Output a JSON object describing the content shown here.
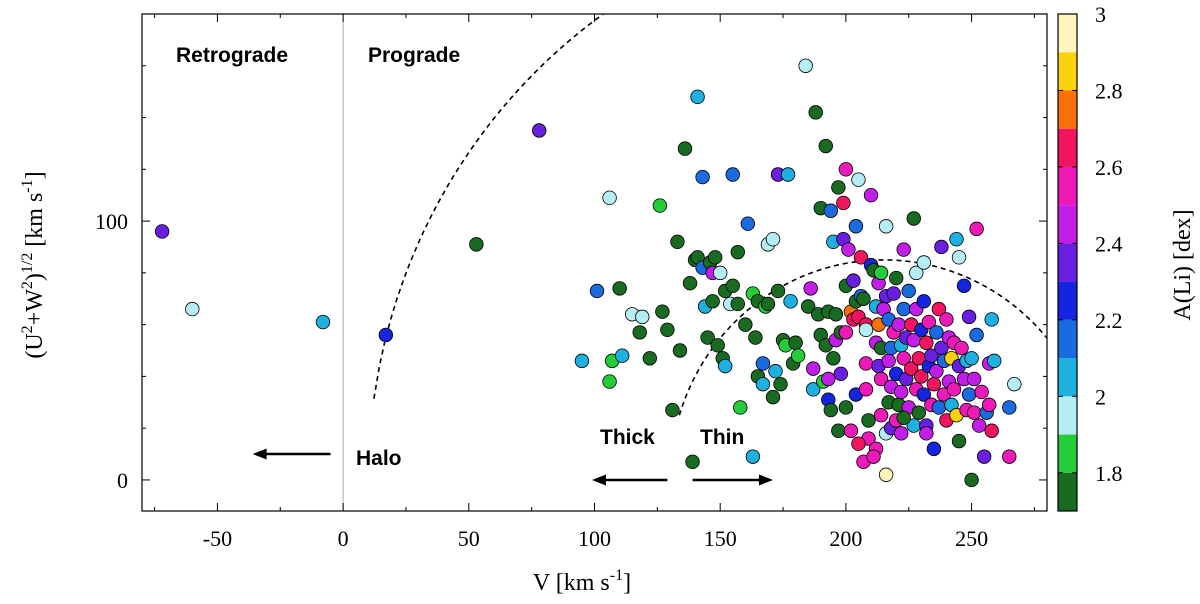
{
  "chart_data": {
    "type": "scatter",
    "xlabel": "V [km s⁻¹]",
    "ylabel": "(U²+W²)¹ᐟ² [km s⁻¹]",
    "ylabel_parts": {
      "prefix": "(U",
      "sq1": "2",
      "mid": "+W",
      "sq2": "2",
      "close": ")",
      "half": "1/2",
      "unit": " [km s",
      "neg1": "-1",
      "end": "]"
    },
    "xlabel_parts": {
      "main": "V [km s",
      "neg1": "-1",
      "end": "]"
    },
    "xlim": [
      -80,
      280
    ],
    "ylim": [
      -12,
      180
    ],
    "xticks": [
      -50,
      0,
      50,
      100,
      150,
      200,
      250
    ],
    "yticks": [
      0,
      100
    ],
    "xtick_labels": [
      "-50",
      "0",
      "50",
      "100",
      "150",
      "200",
      "250"
    ],
    "ytick_labels": [
      "0",
      "100"
    ],
    "colorbar": {
      "label": "A(Li) [dex]",
      "range": [
        1.7,
        3.0
      ],
      "ticks": [
        1.8,
        2.0,
        2.2,
        2.4,
        2.6,
        2.8,
        3.0
      ],
      "tick_labels": [
        "1.8",
        "2",
        "2.2",
        "2.4",
        "2.6",
        "2.8",
        "3"
      ],
      "bins": [
        {
          "from": 1.7,
          "to": 1.8,
          "color": "#1a6b22"
        },
        {
          "from": 1.8,
          "to": 1.9,
          "color": "#25cc3a"
        },
        {
          "from": 1.9,
          "to": 2.0,
          "color": "#b4eef4"
        },
        {
          "from": 2.0,
          "to": 2.1,
          "color": "#1db0e0"
        },
        {
          "from": 2.1,
          "to": 2.2,
          "color": "#1a6be0"
        },
        {
          "from": 2.2,
          "to": 2.3,
          "color": "#1525dd"
        },
        {
          "from": 2.3,
          "to": 2.4,
          "color": "#6a1ee0"
        },
        {
          "from": 2.4,
          "to": 2.5,
          "color": "#c31de8"
        },
        {
          "from": 2.5,
          "to": 2.6,
          "color": "#ee1ab8"
        },
        {
          "from": 2.6,
          "to": 2.7,
          "color": "#f0155e"
        },
        {
          "from": 2.7,
          "to": 2.8,
          "color": "#fb7009"
        },
        {
          "from": 2.8,
          "to": 2.9,
          "color": "#fcd20f"
        },
        {
          "from": 2.9,
          "to": 3.0,
          "color": "#fdf5bb"
        }
      ]
    },
    "annotations": {
      "retrograde": "Retrograde",
      "prograde": "Prograde",
      "halo": "Halo",
      "thick": "Thick",
      "thin": "Thin"
    },
    "boundaries": {
      "vertical_line_at_v": 0,
      "halo_curve": {
        "center_v": 230,
        "radius": 220
      },
      "thin_curve": {
        "center_v": 215,
        "radius": 85
      }
    },
    "arrows": [
      {
        "name": "halo-arrow",
        "from": [
          -5,
          10
        ],
        "to": [
          -36,
          10
        ]
      },
      {
        "name": "thick-arrow",
        "from": [
          129,
          0
        ],
        "to": [
          99,
          0
        ]
      },
      {
        "name": "thin-arrow",
        "from": [
          139,
          0
        ],
        "to": [
          171,
          0
        ]
      }
    ],
    "points": [
      [
        -72,
        96,
        2.35
      ],
      [
        -60,
        66,
        1.95
      ],
      [
        -8,
        61,
        2.05
      ],
      [
        17,
        56,
        2.25
      ],
      [
        53,
        91,
        1.75
      ],
      [
        78,
        135,
        2.35
      ],
      [
        95,
        46,
        2.05
      ],
      [
        101,
        73,
        2.15
      ],
      [
        106,
        109,
        1.95
      ],
      [
        106,
        38,
        1.85
      ],
      [
        107,
        46,
        1.85
      ],
      [
        110,
        74,
        1.75
      ],
      [
        111,
        48,
        2.05
      ],
      [
        115,
        64,
        1.95
      ],
      [
        118,
        57,
        1.75
      ],
      [
        119,
        63,
        1.95
      ],
      [
        122,
        47,
        1.75
      ],
      [
        126,
        106,
        1.85
      ],
      [
        127,
        65,
        1.75
      ],
      [
        129,
        58,
        1.75
      ],
      [
        131,
        27,
        1.75
      ],
      [
        133,
        92,
        1.75
      ],
      [
        134,
        50,
        1.75
      ],
      [
        136,
        128,
        1.75
      ],
      [
        138,
        76,
        1.75
      ],
      [
        139,
        7,
        1.75
      ],
      [
        140,
        85,
        1.75
      ],
      [
        141,
        86,
        1.75
      ],
      [
        141,
        148,
        2.05
      ],
      [
        143,
        82,
        2.15
      ],
      [
        143,
        117,
        2.15
      ],
      [
        144,
        67,
        2.05
      ],
      [
        145,
        55,
        1.75
      ],
      [
        146,
        84,
        1.75
      ],
      [
        147,
        80,
        2.45
      ],
      [
        147,
        69,
        1.75
      ],
      [
        148,
        86,
        1.75
      ],
      [
        149,
        52,
        1.75
      ],
      [
        150,
        80,
        1.95
      ],
      [
        151,
        47,
        1.75
      ],
      [
        152,
        44,
        2.05
      ],
      [
        152,
        73,
        1.75
      ],
      [
        154,
        68,
        1.95
      ],
      [
        155,
        75,
        1.75
      ],
      [
        155,
        118,
        2.15
      ],
      [
        157,
        68,
        1.75
      ],
      [
        157,
        88,
        1.75
      ],
      [
        158,
        28,
        1.85
      ],
      [
        160,
        60,
        1.75
      ],
      [
        161,
        99,
        2.15
      ],
      [
        163,
        72,
        1.85
      ],
      [
        163,
        9,
        2.05
      ],
      [
        164,
        55,
        1.75
      ],
      [
        165,
        69,
        1.75
      ],
      [
        165,
        40,
        1.75
      ],
      [
        167,
        37,
        2.05
      ],
      [
        167,
        45,
        2.15
      ],
      [
        168,
        67,
        1.85
      ],
      [
        169,
        68,
        1.75
      ],
      [
        169,
        91,
        1.95
      ],
      [
        171,
        93,
        1.95
      ],
      [
        171,
        32,
        1.75
      ],
      [
        172,
        42,
        2.05
      ],
      [
        173,
        118,
        2.35
      ],
      [
        173,
        73,
        1.75
      ],
      [
        174,
        37,
        1.75
      ],
      [
        175,
        54,
        1.75
      ],
      [
        176,
        52,
        1.85
      ],
      [
        177,
        118,
        2.05
      ],
      [
        178,
        69,
        2.05
      ],
      [
        179,
        45,
        1.75
      ],
      [
        180,
        53,
        1.75
      ],
      [
        181,
        48,
        1.85
      ],
      [
        184,
        160,
        1.95
      ],
      [
        185,
        67,
        1.75
      ],
      [
        186,
        74,
        2.45
      ],
      [
        187,
        35,
        2.05
      ],
      [
        187,
        43,
        2.45
      ],
      [
        188,
        142,
        1.75
      ],
      [
        189,
        64,
        1.75
      ],
      [
        190,
        105,
        1.75
      ],
      [
        190,
        56,
        1.75
      ],
      [
        191,
        38,
        1.85
      ],
      [
        192,
        52,
        1.75
      ],
      [
        192,
        129,
        1.75
      ],
      [
        193,
        31,
        2.25
      ],
      [
        193,
        39,
        2.45
      ],
      [
        193,
        65,
        1.75
      ],
      [
        194,
        27,
        1.75
      ],
      [
        194,
        104,
        2.15
      ],
      [
        195,
        47,
        1.75
      ],
      [
        195,
        92,
        2.05
      ],
      [
        196,
        54,
        2.45
      ],
      [
        196,
        64,
        1.75
      ],
      [
        197,
        19,
        1.75
      ],
      [
        197,
        113,
        1.75
      ],
      [
        198,
        41,
        2.35
      ],
      [
        198,
        57,
        1.75
      ],
      [
        199,
        107,
        2.65
      ],
      [
        199,
        93,
        2.35
      ],
      [
        200,
        75,
        1.75
      ],
      [
        200,
        57,
        2.55
      ],
      [
        200,
        28,
        1.75
      ],
      [
        200,
        120,
        2.55
      ],
      [
        201,
        89,
        2.45
      ],
      [
        202,
        65,
        2.75
      ],
      [
        203,
        77,
        2.35
      ],
      [
        203,
        62,
        2.65
      ],
      [
        204,
        33,
        2.25
      ],
      [
        204,
        69,
        1.75
      ],
      [
        204,
        98,
        2.15
      ],
      [
        205,
        116,
        1.95
      ],
      [
        205,
        63,
        2.65
      ],
      [
        206,
        71,
        2.15
      ],
      [
        206,
        86,
        2.65
      ],
      [
        207,
        70,
        1.75
      ],
      [
        208,
        45,
        2.55
      ],
      [
        208,
        60,
        2.65
      ],
      [
        208,
        35,
        2.55
      ],
      [
        208,
        58,
        1.95
      ],
      [
        209,
        23,
        1.75
      ],
      [
        209,
        16,
        2.55
      ],
      [
        210,
        110,
        2.45
      ],
      [
        210,
        83,
        2.25
      ],
      [
        211,
        81,
        1.75
      ],
      [
        212,
        67,
        2.05
      ],
      [
        212,
        53,
        2.45
      ],
      [
        213,
        60,
        2.75
      ],
      [
        213,
        76,
        2.45
      ],
      [
        213,
        44,
        2.35
      ],
      [
        214,
        25,
        2.55
      ],
      [
        214,
        39,
        2.55
      ],
      [
        214,
        51,
        1.75
      ],
      [
        214,
        80,
        1.85
      ],
      [
        215,
        66,
        2.45
      ],
      [
        216,
        18,
        1.95
      ],
      [
        216,
        71,
        2.35
      ],
      [
        216,
        98,
        1.95
      ],
      [
        217,
        30,
        1.75
      ],
      [
        217,
        46,
        2.45
      ],
      [
        217,
        62,
        2.15
      ],
      [
        218,
        36,
        2.45
      ],
      [
        218,
        20,
        2.35
      ],
      [
        218,
        51,
        2.15
      ],
      [
        219,
        72,
        2.35
      ],
      [
        219,
        57,
        2.55
      ],
      [
        220,
        23,
        2.55
      ],
      [
        220,
        41,
        2.25
      ],
      [
        220,
        78,
        1.75
      ],
      [
        221,
        60,
        2.45
      ],
      [
        221,
        29,
        1.75
      ],
      [
        222,
        52,
        2.05
      ],
      [
        222,
        34,
        2.45
      ],
      [
        222,
        18,
        2.45
      ],
      [
        223,
        66,
        2.15
      ],
      [
        223,
        47,
        2.55
      ],
      [
        223,
        89,
        2.45
      ],
      [
        224,
        39,
        2.35
      ],
      [
        224,
        55,
        2.35
      ],
      [
        225,
        28,
        2.45
      ],
      [
        225,
        73,
        2.15
      ],
      [
        226,
        60,
        2.65
      ],
      [
        226,
        43,
        2.65
      ],
      [
        227,
        21,
        2.05
      ],
      [
        227,
        54,
        2.45
      ],
      [
        227,
        101,
        1.75
      ],
      [
        228,
        35,
        2.55
      ],
      [
        228,
        66,
        2.45
      ],
      [
        228,
        80,
        1.95
      ],
      [
        229,
        47,
        2.65
      ],
      [
        229,
        26,
        1.75
      ],
      [
        230,
        58,
        2.25
      ],
      [
        230,
        40,
        2.65
      ],
      [
        231,
        69,
        2.25
      ],
      [
        231,
        33,
        2.25
      ],
      [
        231,
        84,
        1.95
      ],
      [
        232,
        21,
        2.35
      ],
      [
        232,
        53,
        2.65
      ],
      [
        233,
        44,
        2.25
      ],
      [
        233,
        61,
        2.55
      ],
      [
        234,
        29,
        2.55
      ],
      [
        234,
        48,
        2.35
      ],
      [
        235,
        37,
        2.65
      ],
      [
        235,
        12,
        2.25
      ],
      [
        236,
        57,
        2.15
      ],
      [
        236,
        42,
        2.45
      ],
      [
        237,
        28,
        2.15
      ],
      [
        237,
        66,
        2.65
      ],
      [
        238,
        51,
        2.35
      ],
      [
        238,
        90,
        2.35
      ],
      [
        239,
        33,
        2.55
      ],
      [
        239,
        46,
        2.15
      ],
      [
        240,
        62,
        2.55
      ],
      [
        240,
        23,
        2.65
      ],
      [
        241,
        38,
        2.45
      ],
      [
        241,
        55,
        2.45
      ],
      [
        242,
        47,
        2.85
      ],
      [
        242,
        29,
        2.05
      ],
      [
        243,
        35,
        2.55
      ],
      [
        243,
        53,
        2.55
      ],
      [
        244,
        25,
        2.85
      ],
      [
        244,
        93,
        2.05
      ],
      [
        245,
        44,
        2.35
      ],
      [
        245,
        15,
        1.75
      ],
      [
        245,
        86,
        1.95
      ],
      [
        246,
        51,
        2.55
      ],
      [
        247,
        39,
        2.45
      ],
      [
        247,
        75,
        2.25
      ],
      [
        248,
        27,
        2.55
      ],
      [
        248,
        46,
        2.05
      ],
      [
        249,
        33,
        2.15
      ],
      [
        249,
        63,
        2.35
      ],
      [
        250,
        47,
        2.05
      ],
      [
        250,
        0,
        1.75
      ],
      [
        251,
        39,
        2.45
      ],
      [
        251,
        26,
        2.55
      ],
      [
        252,
        56,
        2.15
      ],
      [
        252,
        97,
        2.55
      ],
      [
        253,
        21,
        2.45
      ],
      [
        254,
        34,
        2.55
      ],
      [
        255,
        9,
        2.35
      ],
      [
        256,
        26,
        2.15
      ],
      [
        257,
        45,
        2.45
      ],
      [
        257,
        29,
        2.55
      ],
      [
        258,
        19,
        2.65
      ],
      [
        258,
        62,
        2.05
      ],
      [
        259,
        46,
        2.05
      ],
      [
        265,
        28,
        2.15
      ],
      [
        265,
        9,
        2.55
      ],
      [
        267,
        37,
        1.95
      ],
      [
        207,
        7,
        2.55
      ],
      [
        212,
        12,
        2.55
      ],
      [
        216,
        2,
        2.95
      ],
      [
        202,
        19,
        2.55
      ],
      [
        205,
        14,
        2.65
      ],
      [
        211,
        9,
        2.55
      ],
      [
        223,
        24,
        1.75
      ],
      [
        232,
        18,
        2.45
      ]
    ]
  }
}
